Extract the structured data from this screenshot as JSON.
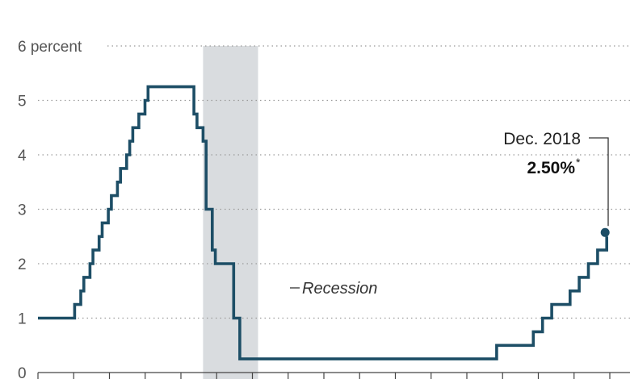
{
  "chart_data": {
    "type": "line",
    "ylim": [
      0,
      6
    ],
    "yticks": [
      {
        "value": 0,
        "label": "0"
      },
      {
        "value": 1,
        "label": "1"
      },
      {
        "value": 2,
        "label": "2"
      },
      {
        "value": 3,
        "label": "3"
      },
      {
        "value": 4,
        "label": "4"
      },
      {
        "value": 5,
        "label": "5"
      },
      {
        "value": 6,
        "label": "6 percent"
      }
    ],
    "xlim": [
      "2003-06",
      "2019-01"
    ],
    "x_tick_count": 17,
    "grid": "horizontal dotted",
    "recession": {
      "start": "2007-12",
      "end": "2009-06",
      "label": "Recession"
    },
    "series": [
      {
        "color": "#1d4e66",
        "points": [
          [
            "2003-06",
            1.0
          ],
          [
            "2004-06",
            1.0
          ],
          [
            "2004-06",
            1.25
          ],
          [
            "2004-08",
            1.25
          ],
          [
            "2004-08",
            1.5
          ],
          [
            "2004-09",
            1.5
          ],
          [
            "2004-09",
            1.75
          ],
          [
            "2004-11",
            1.75
          ],
          [
            "2004-11",
            2.0
          ],
          [
            "2004-12",
            2.0
          ],
          [
            "2004-12",
            2.25
          ],
          [
            "2005-02",
            2.25
          ],
          [
            "2005-02",
            2.5
          ],
          [
            "2005-03",
            2.5
          ],
          [
            "2005-03",
            2.75
          ],
          [
            "2005-05",
            2.75
          ],
          [
            "2005-05",
            3.0
          ],
          [
            "2005-06",
            3.0
          ],
          [
            "2005-06",
            3.25
          ],
          [
            "2005-08",
            3.25
          ],
          [
            "2005-08",
            3.5
          ],
          [
            "2005-09",
            3.5
          ],
          [
            "2005-09",
            3.75
          ],
          [
            "2005-11",
            3.75
          ],
          [
            "2005-11",
            4.0
          ],
          [
            "2005-12",
            4.0
          ],
          [
            "2005-12",
            4.25
          ],
          [
            "2006-01",
            4.25
          ],
          [
            "2006-01",
            4.5
          ],
          [
            "2006-03",
            4.5
          ],
          [
            "2006-03",
            4.75
          ],
          [
            "2006-05",
            4.75
          ],
          [
            "2006-05",
            5.0
          ],
          [
            "2006-06",
            5.0
          ],
          [
            "2006-06",
            5.25
          ],
          [
            "2007-09",
            5.25
          ],
          [
            "2007-09",
            4.75
          ],
          [
            "2007-10",
            4.75
          ],
          [
            "2007-10",
            4.5
          ],
          [
            "2007-12",
            4.5
          ],
          [
            "2007-12",
            4.25
          ],
          [
            "2008-01",
            4.25
          ],
          [
            "2008-01",
            3.0
          ],
          [
            "2008-03",
            3.0
          ],
          [
            "2008-03",
            2.25
          ],
          [
            "2008-04",
            2.25
          ],
          [
            "2008-04",
            2.0
          ],
          [
            "2008-10",
            2.0
          ],
          [
            "2008-10",
            1.5
          ],
          [
            "2008-10",
            1.0
          ],
          [
            "2008-12",
            1.0
          ],
          [
            "2008-12",
            0.25
          ],
          [
            "2015-12",
            0.25
          ],
          [
            "2015-12",
            0.5
          ],
          [
            "2016-12",
            0.5
          ],
          [
            "2016-12",
            0.75
          ],
          [
            "2017-03",
            0.75
          ],
          [
            "2017-03",
            1.0
          ],
          [
            "2017-06",
            1.0
          ],
          [
            "2017-06",
            1.25
          ],
          [
            "2017-12",
            1.25
          ],
          [
            "2017-12",
            1.5
          ],
          [
            "2018-03",
            1.5
          ],
          [
            "2018-03",
            1.75
          ],
          [
            "2018-06",
            1.75
          ],
          [
            "2018-06",
            2.0
          ],
          [
            "2018-09",
            2.0
          ],
          [
            "2018-09",
            2.25
          ],
          [
            "2018-12",
            2.25
          ],
          [
            "2018-12",
            2.5
          ]
        ]
      }
    ],
    "annotation": {
      "date": "Dec. 2018",
      "value": "2.50%",
      "footnote_mark": "*"
    }
  },
  "colors": {
    "line": "#1d4e66",
    "recession": "#d9dcdf",
    "grid": "#9a9a9a"
  }
}
